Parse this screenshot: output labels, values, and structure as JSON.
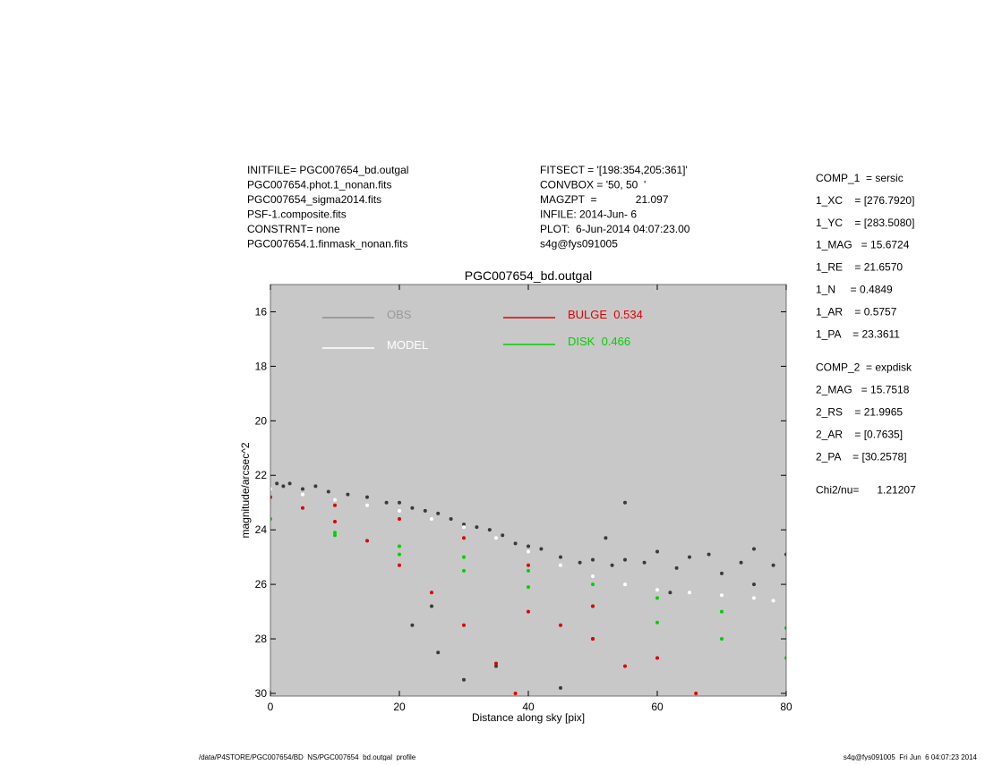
{
  "header": {
    "left_lines": [
      "INITFILE= PGC007654_bd.outgal",
      "PGC007654.phot.1_nonan.fits",
      "PGC007654_sigma2014.fits",
      "PSF-1.composite.fits",
      "CONSTRNT= none",
      "PGC007654.1.finmask_nonan.fits"
    ],
    "middle_lines": [
      "FITSECT = '[198:354,205:361]'",
      "CONVBOX = '50, 50  '",
      "MAGZPT  =             21.097",
      "INFILE: 2014-Jun- 6",
      "PLOT:  6-Jun-2014 04:07:23.00",
      "s4g@fys091005"
    ]
  },
  "parameters": {
    "comp_1": [
      "COMP_1  = sersic",
      "1_XC    = [276.7920]",
      "1_YC    = [283.5080]",
      "1_MAG   = 15.6724",
      "1_RE    = 21.6570",
      "1_N     = 0.4849",
      "1_AR    = 0.5757",
      "1_PA    = 23.3611"
    ],
    "comp_2": [
      "COMP_2  = expdisk",
      "2_MAG   = 15.7518",
      "2_RS    = 21.9965",
      "2_AR    = [0.7635]",
      "2_PA    = [30.2578]"
    ],
    "fit": [
      "Chi2/nu=      1.21207"
    ]
  },
  "footer": {
    "left": "/data/P4STORE/PGC007654/BD_NS/PGC007654_bd.outgal_profile",
    "right": "s4g@fys091005  Fri Jun  6 04:07:23 2014"
  },
  "chart_data": {
    "type": "scatter",
    "title": "PGC007654_bd.outgal",
    "x_label": "Distance along sky [pix]",
    "y_label": "magnitude/arcsec^2",
    "xlim": [
      0,
      80
    ],
    "xticks": [
      0,
      20,
      40,
      60,
      80
    ],
    "ylim": [
      30.1,
      15
    ],
    "yticks": [
      16,
      18,
      20,
      22,
      24,
      26,
      28,
      30
    ],
    "background": "#c8c8c8",
    "series": [
      {
        "name": "OBS",
        "color": "#3a3a3a",
        "legend_color": "#8c8c8c",
        "x": [
          1,
          2,
          3,
          5,
          7,
          9,
          12,
          15,
          18,
          20,
          22,
          24,
          26,
          28,
          30,
          32,
          34,
          36,
          38,
          40,
          42,
          45,
          48,
          50,
          53,
          55,
          58,
          60,
          63,
          65,
          68,
          70,
          73,
          75,
          78,
          80,
          22,
          26,
          30,
          35,
          45,
          50,
          25,
          55,
          52,
          62,
          75
        ],
        "values": [
          22.3,
          22.4,
          22.3,
          22.5,
          22.4,
          22.6,
          22.7,
          22.8,
          23.0,
          23.0,
          23.2,
          23.3,
          23.4,
          23.6,
          23.8,
          23.9,
          24.0,
          24.2,
          24.5,
          24.6,
          24.7,
          25.0,
          25.2,
          25.1,
          25.3,
          25.1,
          25.2,
          24.8,
          25.4,
          25.0,
          24.9,
          25.6,
          25.2,
          24.7,
          25.3,
          24.9,
          27.5,
          28.5,
          29.5,
          29.0,
          29.8,
          28.0,
          26.8,
          23.0,
          24.3,
          26.3,
          26.0
        ]
      },
      {
        "name": "MODEL",
        "color": "#ffffff",
        "legend_color": "#ffffff",
        "x": [
          0,
          5,
          10,
          15,
          20,
          25,
          30,
          35,
          40,
          45,
          50,
          55,
          60,
          65,
          70,
          75,
          78
        ],
        "values": [
          22.5,
          22.7,
          22.9,
          23.1,
          23.3,
          23.6,
          23.9,
          24.3,
          24.8,
          25.3,
          25.7,
          26.0,
          26.2,
          26.3,
          26.4,
          26.5,
          26.6
        ]
      },
      {
        "name": "DISK  0.466",
        "color": "#00d000",
        "legend_color": "#00d000",
        "x": [
          0,
          10,
          20,
          30,
          40,
          50,
          60,
          70,
          80,
          10,
          20,
          30,
          40,
          50,
          60,
          70,
          80
        ],
        "values": [
          23.6,
          24.1,
          24.6,
          25.0,
          25.5,
          26.0,
          26.5,
          27.0,
          27.6,
          24.2,
          24.9,
          25.5,
          26.1,
          26.8,
          27.4,
          28.0,
          28.7
        ]
      },
      {
        "name": "BULGE  0.534",
        "color": "#e00000",
        "legend_color": "#e00000",
        "x": [
          0,
          10,
          20,
          30,
          40,
          50,
          60,
          66,
          5,
          10,
          15,
          20,
          25,
          30,
          35,
          38,
          40,
          45,
          50,
          55
        ],
        "values": [
          22.8,
          23.1,
          23.6,
          24.3,
          25.3,
          26.8,
          28.7,
          30.0,
          23.2,
          23.7,
          24.4,
          25.3,
          26.3,
          27.5,
          28.9,
          30.0,
          27.0,
          27.5,
          28.0,
          29.0
        ]
      }
    ]
  }
}
